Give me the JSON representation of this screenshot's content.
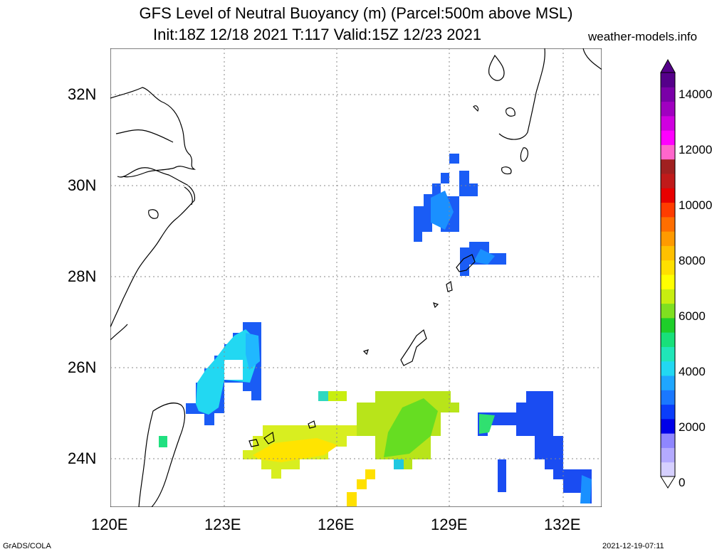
{
  "title": {
    "line1": "GFS Level of Neutral Buoyancy (m) (Parcel:500m above MSL)",
    "line2": "Init:18Z 12/18 2021 T:117 Valid:15Z 12/23 2021",
    "brand": "weather-models.info"
  },
  "axes": {
    "lat_labels": [
      "32N",
      "30N",
      "28N",
      "26N",
      "24N"
    ],
    "lon_labels": [
      "120E",
      "123E",
      "126E",
      "129E",
      "132E"
    ]
  },
  "colorbar": {
    "labels": [
      "14000",
      "12000",
      "10000",
      "8000",
      "6000",
      "4000",
      "2000",
      "0"
    ],
    "colors": [
      "#d6d0ff",
      "#b4aaff",
      "#8f86ff",
      "#0000e8",
      "#0a3dfa",
      "#1a78ff",
      "#1fa6ff",
      "#22d8f2",
      "#20e6b8",
      "#18e07a",
      "#1ecf2a",
      "#7fe020",
      "#c8ee10",
      "#ffff00",
      "#ffe000",
      "#ffc000",
      "#ff9a00",
      "#ff6e00",
      "#ff3c00",
      "#e80000",
      "#c01a1a",
      "#a02020",
      "#ff66cc",
      "#ff00ff",
      "#d000e0",
      "#a000c0",
      "#7a00a8",
      "#55008a"
    ]
  },
  "footer": {
    "left": "GrADS/COLA",
    "right": "2021-12-19-07:11"
  }
}
